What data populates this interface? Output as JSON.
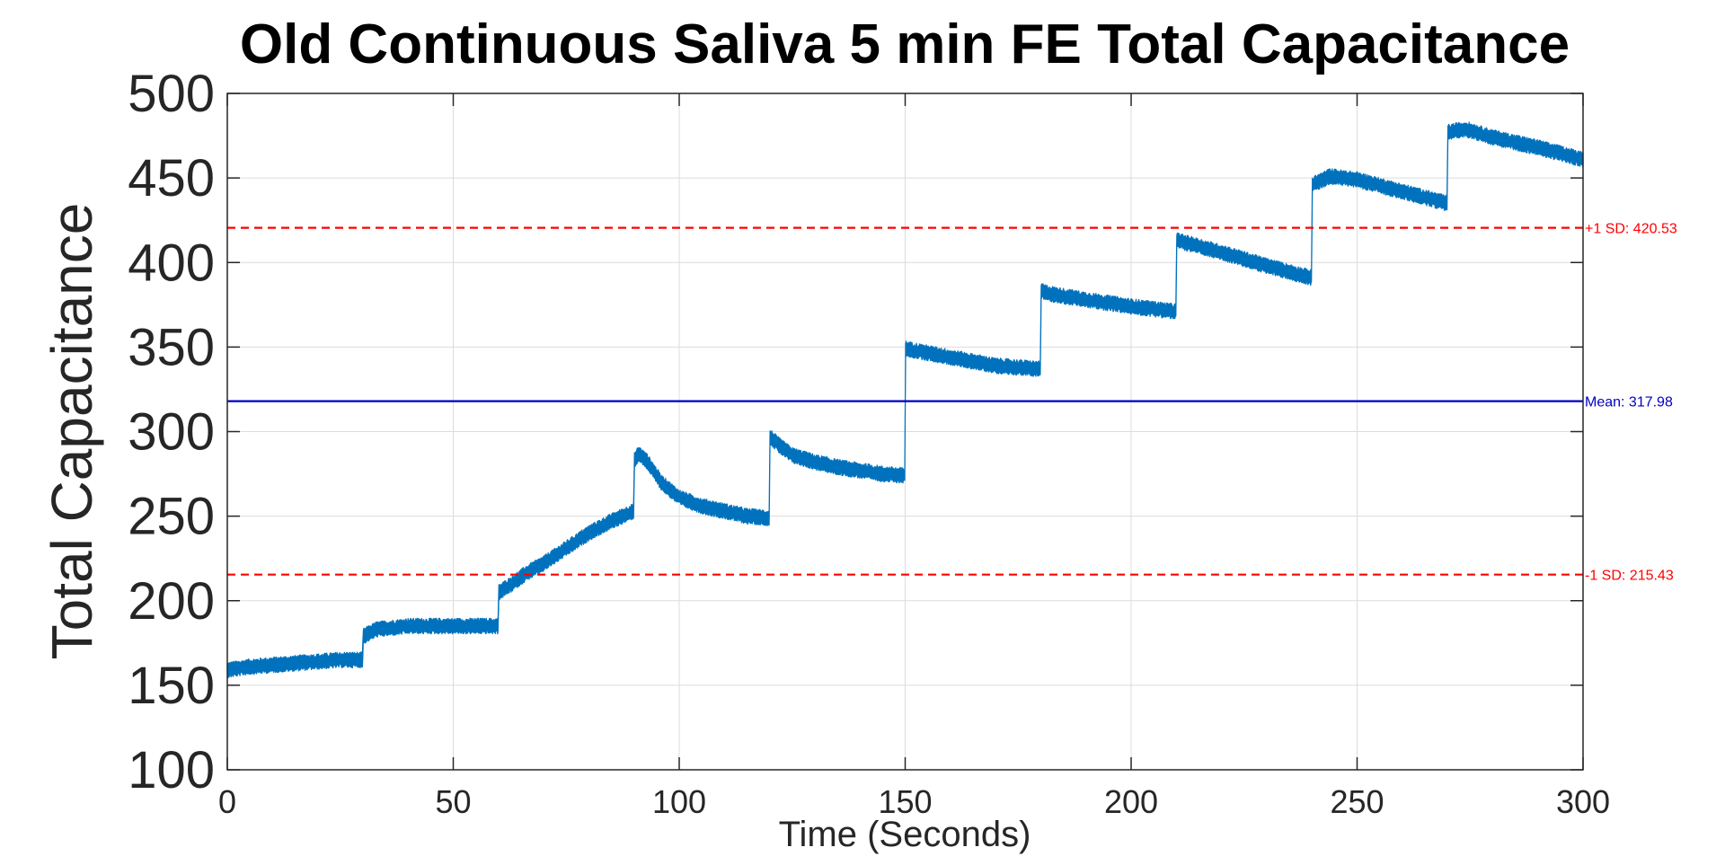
{
  "chart_data": {
    "type": "line",
    "title": "Old Continuous Saliva 5 min FE Total Capacitance",
    "xlabel": "Time (Seconds)",
    "ylabel": "Total Capacitance",
    "xlim": [
      0,
      300
    ],
    "ylim": [
      100,
      500
    ],
    "xticks": [
      0,
      50,
      100,
      150,
      200,
      250,
      300
    ],
    "yticks": [
      100,
      150,
      200,
      250,
      300,
      350,
      400,
      450,
      500
    ],
    "xtick_labels": [
      "0",
      "50",
      "100",
      "150",
      "200",
      "250",
      "300"
    ],
    "ytick_labels": [
      "100",
      "150",
      "200",
      "250",
      "300",
      "350",
      "400",
      "450",
      "500"
    ],
    "grid": true,
    "series_color": "#0072BD",
    "series": [
      {
        "x": [
          0,
          5,
          10,
          15,
          20,
          25,
          29.9,
          30.1,
          33,
          40,
          50,
          59.9,
          60.1,
          63,
          66,
          70,
          75,
          80,
          85,
          89.9,
          90.1,
          91,
          93,
          96,
          100,
          105,
          110,
          115,
          119.9,
          120.1,
          122,
          125,
          130,
          135,
          140,
          145,
          149.9,
          150.1,
          152,
          160,
          170,
          179.9,
          180.1,
          183,
          190,
          200,
          209.9,
          210.1,
          213,
          220,
          230,
          239.9,
          240.1,
          244,
          250,
          260,
          269.9,
          270.1,
          274,
          280,
          290,
          300
        ],
        "y": [
          159,
          161,
          162,
          163,
          164,
          165,
          165,
          179,
          183,
          185,
          185,
          185,
          205,
          210,
          216,
          222,
          231,
          240,
          247,
          253,
          283,
          287,
          282,
          270,
          261,
          256,
          253,
          250,
          249,
          297,
          292,
          286,
          282,
          279,
          277,
          275,
          274,
          349,
          348,
          344,
          339,
          337,
          383,
          381,
          378,
          374,
          371,
          413,
          411,
          406,
          398,
          391,
          446,
          451,
          449,
          442,
          435,
          477,
          479,
          474,
          468,
          461
        ]
      }
    ],
    "reference_lines": [
      {
        "value": 420.53,
        "label": "+1 SD: 420.53",
        "color": "#FF0000",
        "style": "dashed"
      },
      {
        "value": 317.98,
        "label": "Mean: 317.98",
        "color": "#0000C0",
        "style": "solid"
      },
      {
        "value": 215.43,
        "label": "-1 SD: 215.43",
        "color": "#FF0000",
        "style": "dashed"
      }
    ]
  }
}
